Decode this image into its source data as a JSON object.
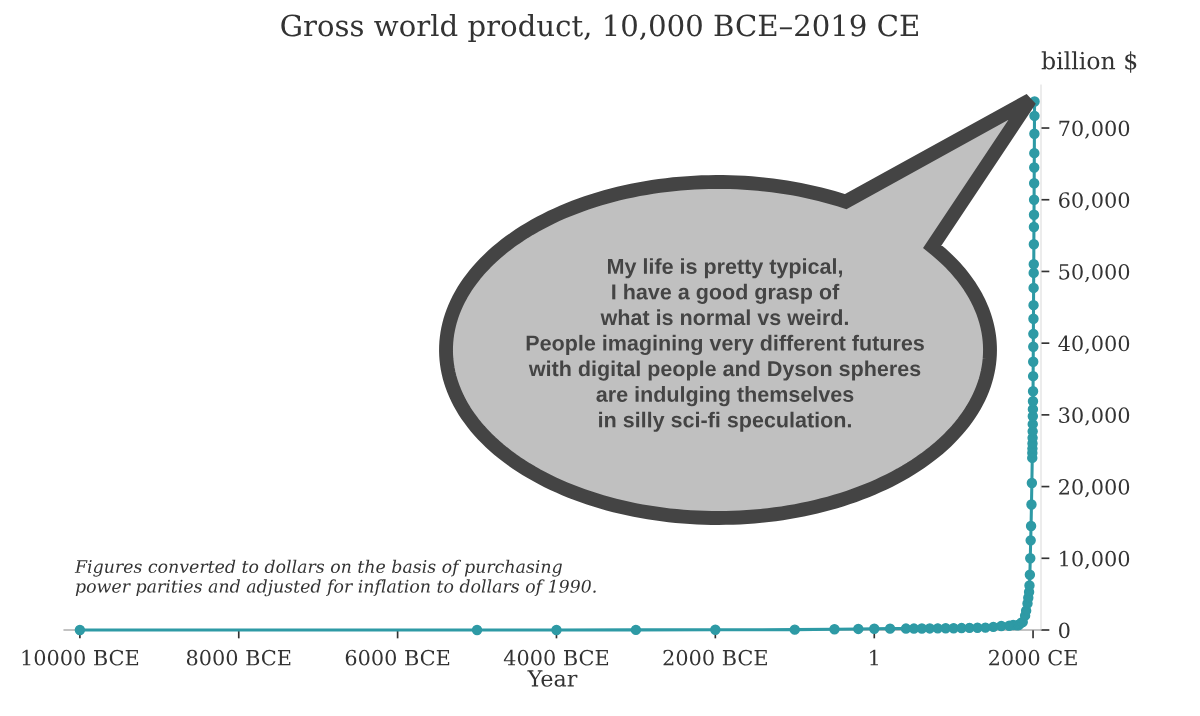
{
  "chart_data": {
    "type": "line",
    "title": "Gross world product, 10,000 BCE–2019 CE",
    "xlabel": "Year",
    "ylabel": "billion $",
    "annotations": [
      "My life is pretty typical,\nI have a good grasp of\nwhat is normal vs weird.\nPeople imagining very different futures\nwith digital people and Dyson spheres\nare indulging themselves\nin silly sci-fi speculation.",
      "Figures converted to dollars on the basis of purchasing\npower parities and adjusted for inflation to dollars of 1990."
    ],
    "x": [
      -10000,
      -5000,
      -4000,
      -3000,
      -2000,
      -1000,
      -500,
      -200,
      1,
      200,
      400,
      500,
      600,
      700,
      800,
      900,
      1000,
      1100,
      1200,
      1300,
      1400,
      1500,
      1600,
      1700,
      1750,
      1800,
      1820,
      1850,
      1870,
      1900,
      1913,
      1930,
      1940,
      1950,
      1955,
      1960,
      1965,
      1970,
      1975,
      1980,
      1985,
      1990,
      1991,
      1992,
      1993,
      1994,
      1995,
      1996,
      1997,
      1998,
      1999,
      2000,
      2001,
      2002,
      2003,
      2004,
      2005,
      2006,
      2007,
      2008,
      2009,
      2010,
      2011,
      2012,
      2013,
      2014,
      2015,
      2016,
      2017,
      2018,
      2019
    ],
    "series": [
      {
        "color": "#2e9aa5",
        "values": [
          2,
          5,
          7,
          14,
          27,
          50,
          100,
          150,
          180,
          190,
          200,
          200,
          210,
          220,
          230,
          240,
          250,
          270,
          300,
          320,
          330,
          430,
          550,
          600,
          700,
          650,
          700,
          1000,
          1100,
          2000,
          2700,
          3700,
          4500,
          5300,
          6200,
          7700,
          10000,
          12500,
          14500,
          17500,
          20500,
          24000,
          24700,
          25300,
          26000,
          26800,
          27700,
          28700,
          29800,
          30800,
          31900,
          33300,
          35400,
          37400,
          39500,
          41300,
          43400,
          45300,
          47700,
          49800,
          51000,
          53800,
          56200,
          57900,
          60000,
          62300,
          64500,
          66500,
          69200,
          71700,
          73700
        ]
      }
    ],
    "xlim": [
      -10200,
      2100
    ],
    "ylim": [
      0,
      76000
    ],
    "xticks": [
      {
        "value": -10000,
        "label": "10000 BCE"
      },
      {
        "value": -8000,
        "label": "8000 BCE"
      },
      {
        "value": -6000,
        "label": "6000 BCE"
      },
      {
        "value": -4000,
        "label": "4000 BCE"
      },
      {
        "value": -2000,
        "label": "2000 BCE"
      },
      1,
      {
        "value": 2000,
        "label": "2000 CE"
      }
    ],
    "yticks": [
      0,
      {
        "value": 10000,
        "label": "10,000"
      },
      {
        "value": 20000,
        "label": "20,000"
      },
      {
        "value": 30000,
        "label": "30,000"
      },
      {
        "value": 40000,
        "label": "40,000"
      },
      {
        "value": 50000,
        "label": "50,000"
      },
      {
        "value": 60000,
        "label": "60,000"
      },
      {
        "value": 70000,
        "label": "70,000"
      }
    ],
    "marker": "circle"
  }
}
